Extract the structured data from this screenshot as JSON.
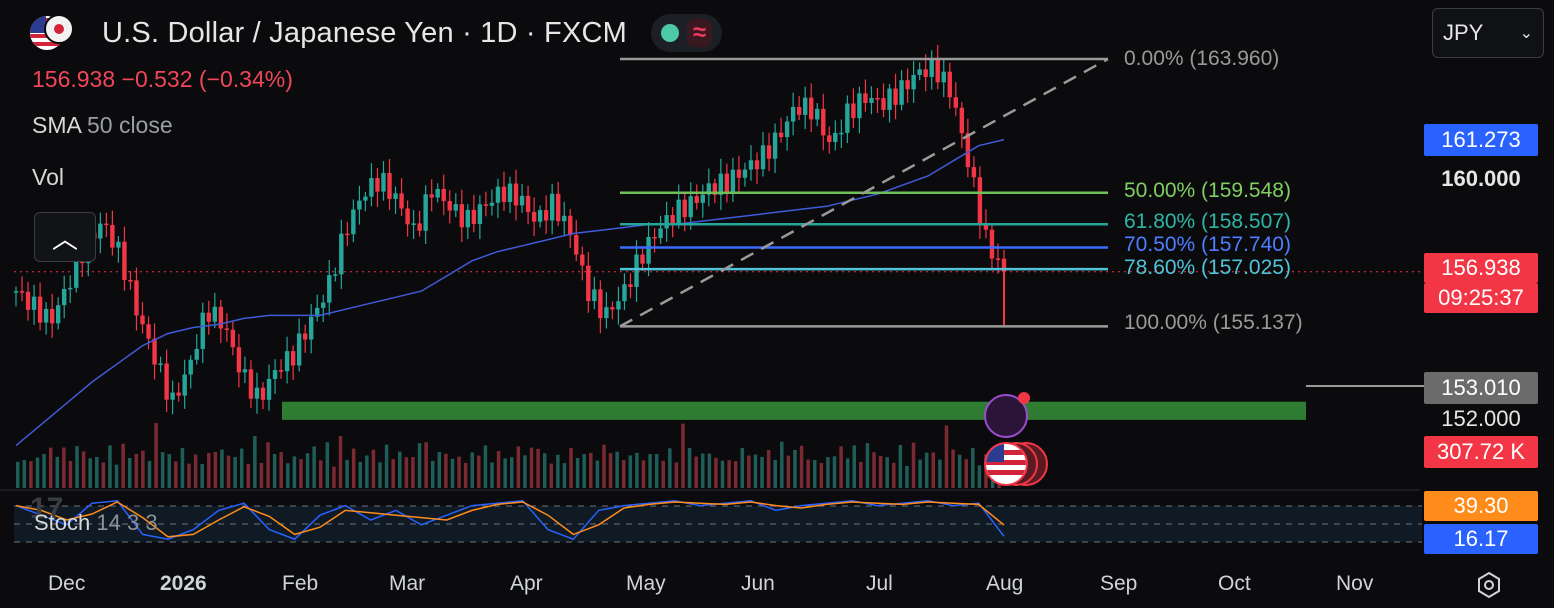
{
  "header": {
    "symbol_title": "U.S. Dollar / Japanese Yen · 1D · FXCM",
    "last_price_change": "156.938  −0.532 (−0.34%)",
    "indicator_sma": "SMA",
    "indicator_sma_params": "50 close",
    "indicator_vol": "Vol",
    "stoch_name": "Stoch",
    "stoch_params": "14 3 3"
  },
  "currency_select": {
    "value": "JPY"
  },
  "price_axis": {
    "sma_tag": "161.273",
    "level_160": "160.000",
    "last_price": "156.938",
    "countdown": "09:25:37",
    "level_153": "153.010",
    "level_152": "152.000",
    "volume_tag": "307.72 K",
    "stoch_k": "39.30",
    "stoch_d": "16.17"
  },
  "fib_levels": [
    {
      "label": "0.00% (163.960)",
      "price": 163.96,
      "color": "#9a9a9a"
    },
    {
      "label": "50.00% (159.548)",
      "price": 159.548,
      "color": "#6fbf5a"
    },
    {
      "label": "61.80% (158.507)",
      "price": 158.507,
      "color": "#26a69a"
    },
    {
      "label": "70.50% (157.740)",
      "price": 157.74,
      "color": "#3b6bff"
    },
    {
      "label": "78.60% (157.025)",
      "price": 157.025,
      "color": "#4fc3d9"
    },
    {
      "label": "100.00% (155.137)",
      "price": 155.137,
      "color": "#9a9a9a"
    }
  ],
  "x_axis": [
    "Dec",
    "2026",
    "Feb",
    "Mar",
    "Apr",
    "May",
    "Jun",
    "Jul",
    "Aug",
    "Sep",
    "Oct",
    "Nov"
  ],
  "colors": {
    "up": "#26a69a",
    "down": "#f23645",
    "sma": "#3f5bd9",
    "stoch_k": "#2962ff",
    "stoch_d": "#ff8c1a",
    "zone": "#2e7d32",
    "bg": "#0b0b0d"
  },
  "chart_data": {
    "type": "candlestick",
    "title": "U.S. Dollar / Japanese Yen · 1D · FXCM",
    "ylim": [
      151.5,
      164.5
    ],
    "support_zone": [
      152.05,
      152.65
    ],
    "x_ticks": [
      "Dec",
      "2026",
      "Feb",
      "Mar",
      "Apr",
      "May",
      "Jun",
      "Jul",
      "Aug",
      "Sep",
      "Oct",
      "Nov"
    ],
    "series": [
      {
        "name": "USDJPY",
        "kind": "line",
        "values": [
          156.3,
          155.8,
          155.3,
          156.5,
          157.8,
          158.6,
          157.5,
          155.6,
          154.1,
          152.6,
          153.8,
          155.7,
          155.2,
          153.6,
          152.7,
          153.7,
          154.2,
          155.3,
          156.4,
          158.3,
          159.5,
          160.0,
          159.3,
          158.2,
          159.7,
          159.1,
          158.6,
          159.1,
          159.6,
          159.4,
          158.6,
          159.2,
          158.2,
          156.3,
          155.5,
          156.2,
          157.4,
          158.3,
          158.9,
          159.2,
          159.7,
          159.9,
          160.3,
          160.7,
          161.4,
          162.4,
          162.3,
          161.1,
          162.2,
          162.7,
          162.5,
          162.9,
          163.5,
          163.7,
          162.8,
          160.4,
          157.9,
          156.94
        ]
      },
      {
        "name": "SMA 50 close",
        "kind": "line",
        "values": [
          151.2,
          151.9,
          152.6,
          153.3,
          153.9,
          154.5,
          154.9,
          155.1,
          155.2,
          155.4,
          155.5,
          155.5,
          155.5,
          155.7,
          155.9,
          156.1,
          156.3,
          156.8,
          157.3,
          157.6,
          157.8,
          158.0,
          158.2,
          158.3,
          158.4,
          158.5,
          158.5,
          158.6,
          158.7,
          158.8,
          158.9,
          159.0,
          159.1,
          159.3,
          159.5,
          159.8,
          160.1,
          160.6,
          161.1,
          161.3
        ]
      },
      {
        "name": "Vol",
        "kind": "bar",
        "values": [
          0.45,
          0.3,
          0.4,
          0.35,
          0.5,
          0.55,
          0.4,
          0.6,
          0.3,
          0.7,
          0.45,
          0.5,
          0.35,
          0.4,
          0.55,
          0.3,
          0.6,
          0.4,
          0.45,
          0.5,
          0.35,
          0.95,
          0.6,
          0.4,
          0.45,
          0.5,
          0.35,
          0.4,
          0.3,
          0.45,
          0.5,
          0.55,
          0.4,
          0.45,
          0.5,
          0.35,
          0.7,
          0.4,
          0.6,
          0.55
        ]
      },
      {
        "name": "Stoch 14 3 3",
        "kind": "line",
        "values": [
          80,
          60,
          40,
          85,
          90,
          20,
          10,
          30,
          70,
          85,
          30,
          10,
          60,
          80,
          50,
          70,
          40,
          60,
          80,
          85,
          90,
          30,
          10,
          70,
          80,
          85,
          90,
          80,
          85,
          90,
          70,
          80,
          85,
          90,
          80,
          85,
          90,
          80,
          85,
          16
        ]
      }
    ]
  }
}
